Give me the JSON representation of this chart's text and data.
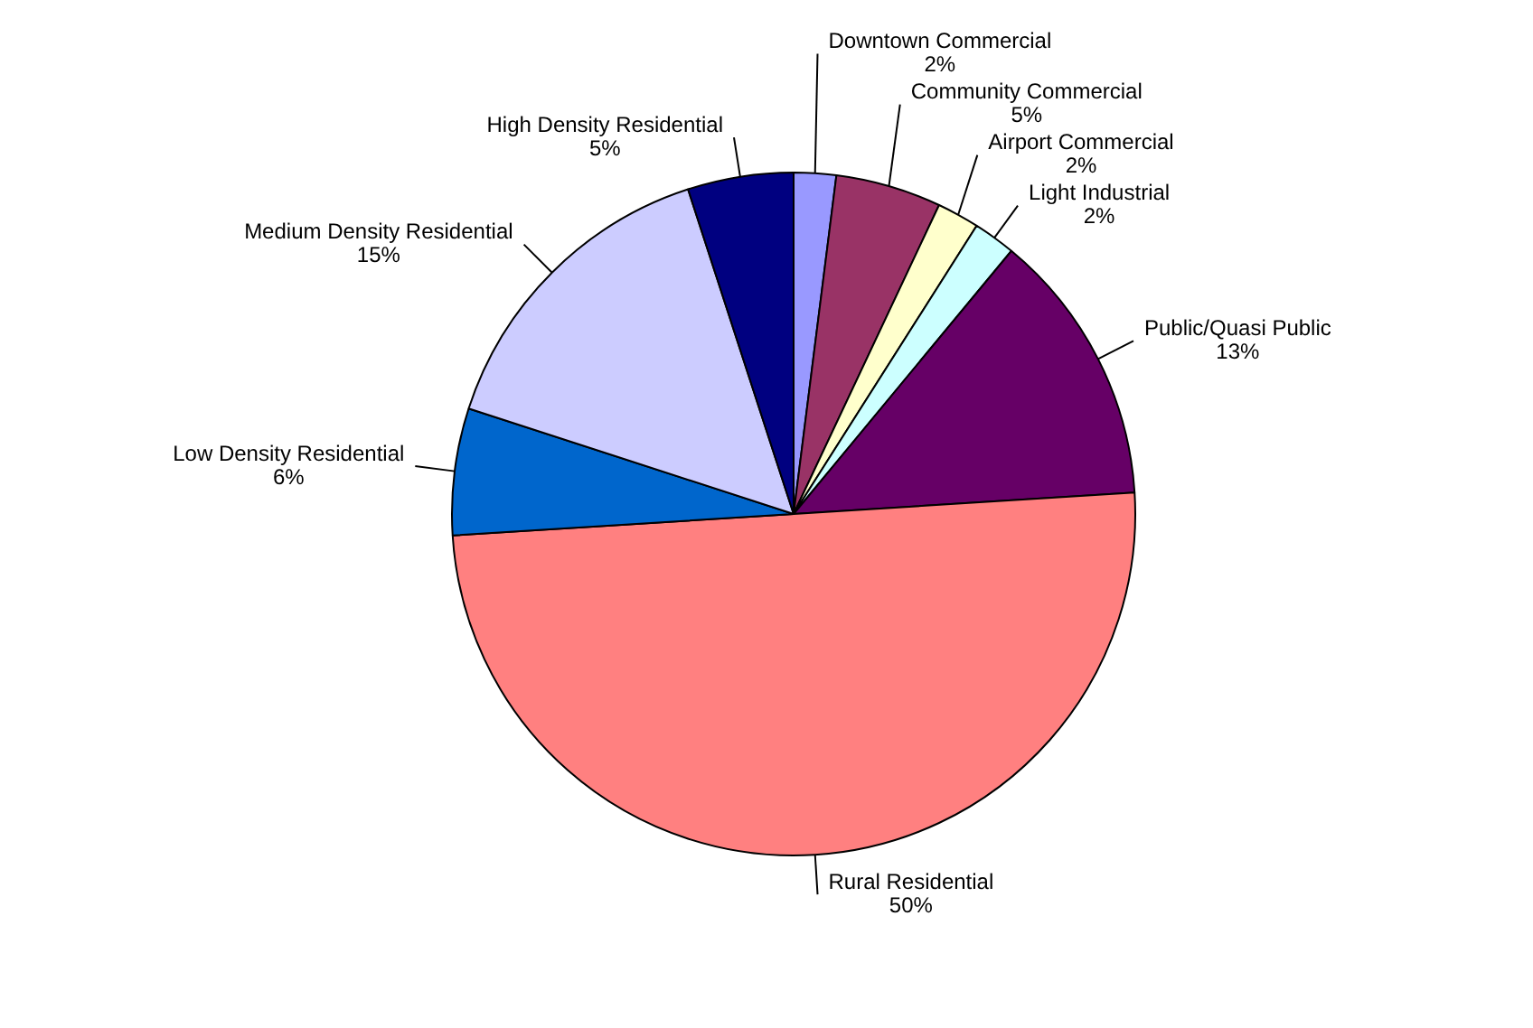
{
  "chart_data": {
    "type": "pie",
    "categories": [
      "Downtown Commercial",
      "Community Commercial",
      "Airport Commercial",
      "Light Industrial",
      "Public/Quasi Public",
      "Rural Residential",
      "Low Density Residential",
      "Medium Density Residential",
      "High Density Residential"
    ],
    "values": [
      2,
      5,
      2,
      2,
      13,
      50,
      6,
      15,
      5
    ],
    "value_labels": [
      "2%",
      "5%",
      "2%",
      "2%",
      "13%",
      "50%",
      "6%",
      "15%",
      "5%"
    ],
    "colors": [
      "#9999ff",
      "#993366",
      "#ffffcc",
      "#ccffff",
      "#660066",
      "#ff8080",
      "#0066cc",
      "#ccccff",
      "#000080"
    ]
  }
}
